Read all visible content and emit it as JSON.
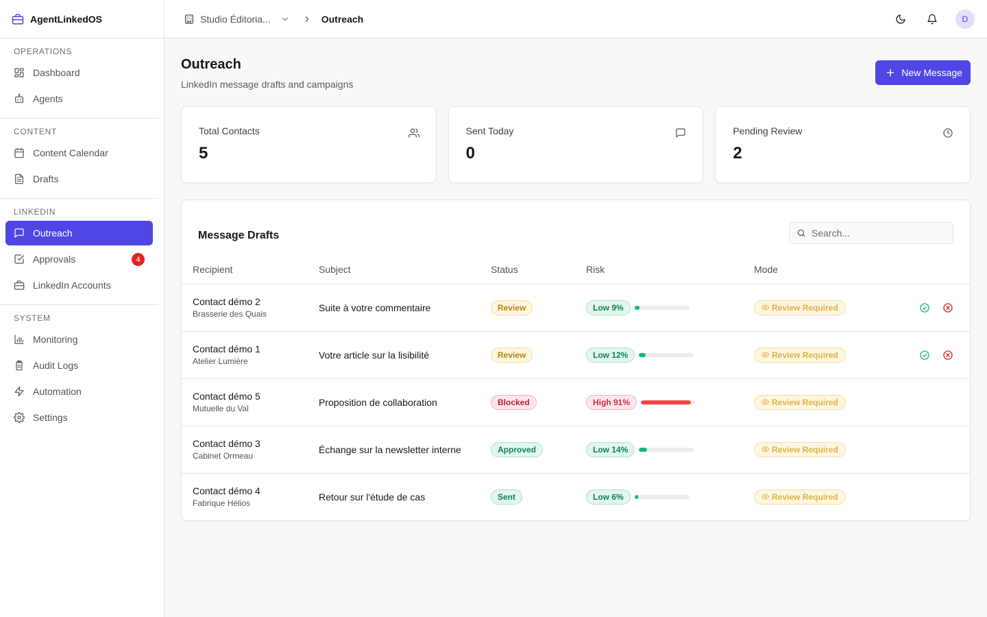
{
  "app": {
    "name": "AgentLinkedOS"
  },
  "sidebar": {
    "sections": [
      {
        "heading": "OPERATIONS",
        "items": [
          {
            "label": "Dashboard",
            "icon": "dashboard-icon"
          },
          {
            "label": "Agents",
            "icon": "bot-icon"
          }
        ]
      },
      {
        "heading": "CONTENT",
        "items": [
          {
            "label": "Content Calendar",
            "icon": "calendar-icon"
          },
          {
            "label": "Drafts",
            "icon": "file-text-icon"
          }
        ]
      },
      {
        "heading": "LINKEDIN",
        "items": [
          {
            "label": "Outreach",
            "icon": "message-icon",
            "active": true
          },
          {
            "label": "Approvals",
            "icon": "check-square-icon",
            "badge": "4"
          },
          {
            "label": "LinkedIn Accounts",
            "icon": "briefcase-icon"
          }
        ]
      },
      {
        "heading": "SYSTEM",
        "items": [
          {
            "label": "Monitoring",
            "icon": "bar-chart-icon"
          },
          {
            "label": "Audit Logs",
            "icon": "clipboard-icon"
          },
          {
            "label": "Automation",
            "icon": "zap-icon"
          },
          {
            "label": "Settings",
            "icon": "gear-icon"
          }
        ]
      }
    ]
  },
  "topbar": {
    "org": "Studio Éditoria...",
    "current": "Outreach",
    "avatar": "D"
  },
  "page": {
    "title": "Outreach",
    "subtitle": "LinkedIn message drafts and campaigns",
    "new_button": "New Message"
  },
  "stats": [
    {
      "label": "Total Contacts",
      "value": "5",
      "icon": "users-icon"
    },
    {
      "label": "Sent Today",
      "value": "0",
      "icon": "message-icon"
    },
    {
      "label": "Pending Review",
      "value": "2",
      "icon": "clock-icon"
    }
  ],
  "drafts": {
    "title": "Message Drafts",
    "search_placeholder": "Search...",
    "columns": [
      "Recipient",
      "Subject",
      "Status",
      "Risk",
      "Mode"
    ],
    "rows": [
      {
        "name": "Contact démo 2",
        "company": "Brasserie des Quais",
        "subject": "Suite à votre commentaire",
        "status": "Review",
        "status_kind": "review",
        "risk_label": "Low 9%",
        "risk_level": "low",
        "risk_value": 9,
        "mode": "Review Required",
        "actions": true
      },
      {
        "name": "Contact démo 1",
        "company": "Atelier Lumière",
        "subject": "Votre article sur la lisibilité",
        "status": "Review",
        "status_kind": "review",
        "risk_label": "Low 12%",
        "risk_level": "low",
        "risk_value": 12,
        "mode": "Review Required",
        "actions": true
      },
      {
        "name": "Contact démo 5",
        "company": "Mutuelle du Val",
        "subject": "Proposition de collaboration",
        "status": "Blocked",
        "status_kind": "blocked",
        "risk_label": "High 91%",
        "risk_level": "high",
        "risk_value": 91,
        "mode": "Review Required",
        "actions": false
      },
      {
        "name": "Contact démo 3",
        "company": "Cabinet Ormeau",
        "subject": "Échange sur la newsletter interne",
        "status": "Approved",
        "status_kind": "approved",
        "risk_label": "Low 14%",
        "risk_level": "low",
        "risk_value": 14,
        "mode": "Review Required",
        "actions": false
      },
      {
        "name": "Contact démo 4",
        "company": "Fabrique Hélios",
        "subject": "Retour sur l'étude de cas",
        "status": "Sent",
        "status_kind": "sent",
        "risk_label": "Low 6%",
        "risk_level": "low",
        "risk_value": 6,
        "mode": "Review Required",
        "actions": false
      }
    ]
  },
  "colors": {
    "accent": "#4f46e5",
    "risk_low": "#10b981",
    "risk_high": "#ef4444",
    "approve": "#10b981",
    "reject": "#dc2626"
  }
}
